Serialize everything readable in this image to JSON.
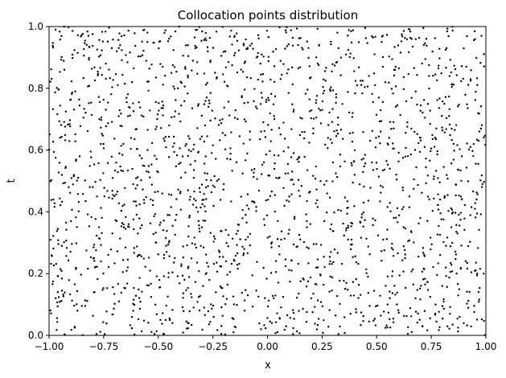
{
  "chart_data": {
    "type": "scatter",
    "title": "Collocation points distribution",
    "xlabel": "x",
    "ylabel": "t",
    "xlim": [
      -1.0,
      1.0
    ],
    "ylim": [
      0.0,
      1.0
    ],
    "x_ticks": [
      "−1.00",
      "−0.75",
      "−0.50",
      "−0.25",
      "0.00",
      "0.25",
      "0.50",
      "0.75",
      "1.00"
    ],
    "y_ticks": [
      "0.0",
      "0.2",
      "0.4",
      "0.6",
      "0.8",
      "1.0"
    ],
    "marker_color": "#000000",
    "grid": false,
    "legend": "none",
    "series": [
      {
        "count": 2000,
        "distribution": "uniform random over x∈[-1,1], t∈[0,1]",
        "sample_points": [
          {
            "x": -0.97,
            "y": 0.99
          },
          {
            "x": -0.93,
            "y": 0.86
          },
          {
            "x": -0.88,
            "y": 0.79
          },
          {
            "x": -0.82,
            "y": 0.97
          },
          {
            "x": -0.74,
            "y": 0.88
          },
          {
            "x": -0.69,
            "y": 0.92
          },
          {
            "x": -0.62,
            "y": 0.82
          },
          {
            "x": -0.55,
            "y": 0.95
          },
          {
            "x": -0.48,
            "y": 0.87
          },
          {
            "x": -0.41,
            "y": 0.8
          },
          {
            "x": -0.33,
            "y": 0.93
          },
          {
            "x": -0.24,
            "y": 0.85
          },
          {
            "x": -0.15,
            "y": 0.97
          },
          {
            "x": -0.05,
            "y": 0.9
          },
          {
            "x": 0.06,
            "y": 0.83
          },
          {
            "x": 0.14,
            "y": 0.94
          },
          {
            "x": 0.23,
            "y": 0.88
          },
          {
            "x": 0.32,
            "y": 0.98
          },
          {
            "x": 0.41,
            "y": 0.81
          },
          {
            "x": 0.49,
            "y": 0.91
          },
          {
            "x": 0.58,
            "y": 0.86
          },
          {
            "x": 0.66,
            "y": 0.96
          },
          {
            "x": 0.74,
            "y": 0.84
          },
          {
            "x": 0.82,
            "y": 0.93
          },
          {
            "x": 0.91,
            "y": 0.87
          },
          {
            "x": 0.98,
            "y": 0.97
          },
          {
            "x": -0.95,
            "y": 0.64
          },
          {
            "x": -0.86,
            "y": 0.58
          },
          {
            "x": -0.77,
            "y": 0.7
          },
          {
            "x": -0.66,
            "y": 0.62
          },
          {
            "x": -0.57,
            "y": 0.55
          },
          {
            "x": -0.45,
            "y": 0.68
          },
          {
            "x": -0.36,
            "y": 0.6
          },
          {
            "x": -0.27,
            "y": 0.74
          },
          {
            "x": -0.17,
            "y": 0.57
          },
          {
            "x": -0.08,
            "y": 0.66
          },
          {
            "x": 0.03,
            "y": 0.71
          },
          {
            "x": 0.12,
            "y": 0.59
          },
          {
            "x": 0.21,
            "y": 0.67
          },
          {
            "x": 0.3,
            "y": 0.56
          },
          {
            "x": 0.39,
            "y": 0.72
          },
          {
            "x": 0.47,
            "y": 0.63
          },
          {
            "x": 0.56,
            "y": 0.54
          },
          {
            "x": 0.64,
            "y": 0.69
          },
          {
            "x": 0.72,
            "y": 0.61
          },
          {
            "x": 0.81,
            "y": 0.75
          },
          {
            "x": 0.89,
            "y": 0.58
          },
          {
            "x": 0.97,
            "y": 0.66
          },
          {
            "x": -0.98,
            "y": 0.44
          },
          {
            "x": -0.9,
            "y": 0.37
          },
          {
            "x": -0.8,
            "y": 0.48
          },
          {
            "x": -0.71,
            "y": 0.33
          },
          {
            "x": -0.6,
            "y": 0.42
          },
          {
            "x": -0.51,
            "y": 0.3
          },
          {
            "x": -0.4,
            "y": 0.46
          },
          {
            "x": -0.3,
            "y": 0.35
          },
          {
            "x": -0.2,
            "y": 0.49
          },
          {
            "x": -0.1,
            "y": 0.39
          },
          {
            "x": 0.01,
            "y": 0.32
          },
          {
            "x": 0.1,
            "y": 0.45
          },
          {
            "x": 0.18,
            "y": 0.37
          },
          {
            "x": 0.27,
            "y": 0.5
          },
          {
            "x": 0.36,
            "y": 0.34
          },
          {
            "x": 0.44,
            "y": 0.43
          },
          {
            "x": 0.53,
            "y": 0.31
          },
          {
            "x": 0.62,
            "y": 0.47
          },
          {
            "x": 0.7,
            "y": 0.38
          },
          {
            "x": 0.79,
            "y": 0.44
          },
          {
            "x": 0.87,
            "y": 0.33
          },
          {
            "x": 0.95,
            "y": 0.41
          },
          {
            "x": -0.96,
            "y": 0.14
          },
          {
            "x": -0.87,
            "y": 0.08
          },
          {
            "x": -0.79,
            "y": 0.22
          },
          {
            "x": -0.68,
            "y": 0.11
          },
          {
            "x": -0.59,
            "y": 0.26
          },
          {
            "x": -0.49,
            "y": 0.05
          },
          {
            "x": -0.38,
            "y": 0.18
          },
          {
            "x": -0.29,
            "y": 0.09
          },
          {
            "x": -0.19,
            "y": 0.24
          },
          {
            "x": -0.09,
            "y": 0.13
          },
          {
            "x": 0.02,
            "y": 0.04
          },
          {
            "x": 0.11,
            "y": 0.21
          },
          {
            "x": 0.2,
            "y": 0.12
          },
          {
            "x": 0.29,
            "y": 0.27
          },
          {
            "x": 0.38,
            "y": 0.07
          },
          {
            "x": 0.46,
            "y": 0.19
          },
          {
            "x": 0.55,
            "y": 0.1
          },
          {
            "x": 0.63,
            "y": 0.25
          },
          {
            "x": 0.71,
            "y": 0.03
          },
          {
            "x": 0.8,
            "y": 0.16
          },
          {
            "x": 0.88,
            "y": 0.06
          },
          {
            "x": 0.96,
            "y": 0.2
          }
        ]
      }
    ]
  }
}
